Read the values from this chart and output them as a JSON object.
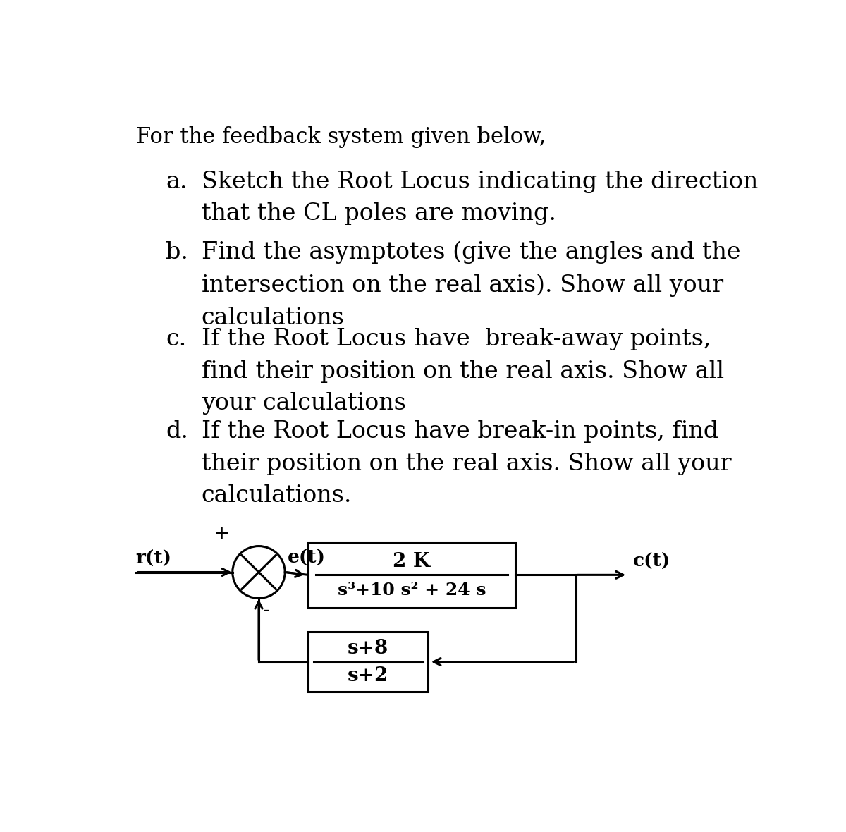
{
  "title_text": "For the feedback system given below,",
  "items": [
    {
      "label": "a.",
      "text": "Sketch the Root Locus indicating the direction\nthat the CL poles are moving."
    },
    {
      "label": "b.",
      "text": "Find the asymptotes (give the angles and the\nintersection on the real axis). Show all your\ncalculations"
    },
    {
      "label": "c.",
      "text": "If the Root Locus have  break-away points,\nfind their position on the real axis. Show all\nyour calculations"
    },
    {
      "label": "d.",
      "text": "If the Root Locus have break-in points, find\ntheir position on the real axis. Show all your\ncalculations."
    }
  ],
  "diagram": {
    "rt_label": "r(t)",
    "plus_label": "+",
    "minus_label": "-",
    "et_label": "e(t)",
    "ct_label": "c(t)",
    "forward_num": "2 K",
    "forward_den": "s³+10 s² + 24 s",
    "feedback_num": "s+8",
    "feedback_den": "s+2"
  },
  "bg_color": "#ffffff",
  "text_color": "#000000",
  "font_size_title": 22,
  "font_size_label": 24,
  "font_size_text": 24,
  "font_size_diagram": 18
}
